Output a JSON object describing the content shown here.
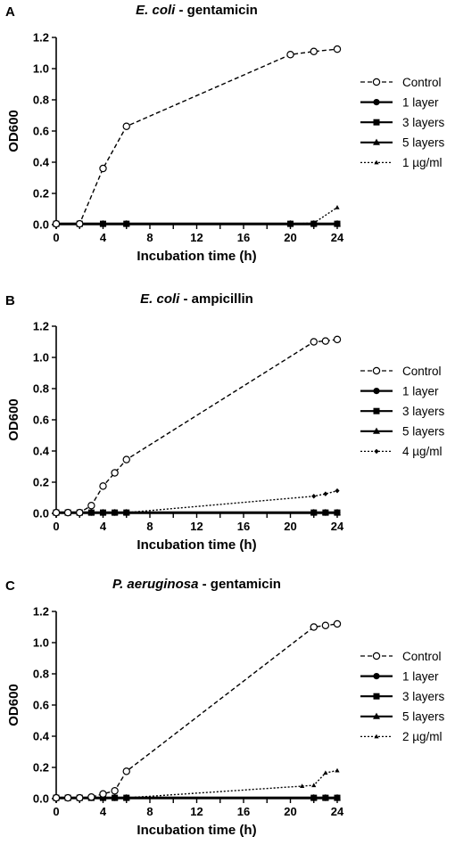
{
  "colors": {
    "ink": "#000000",
    "background": "#ffffff"
  },
  "chart_data": [
    {
      "type": "line",
      "panel_letter": "A",
      "title_italic": "E. coli",
      "title_rest": " - gentamicin",
      "xlabel": "Incubation time (h)",
      "ylabel": "OD600",
      "xlim": [
        0,
        24
      ],
      "ylim": [
        0,
        1.2
      ],
      "xticks": [
        "0",
        "4",
        "8",
        "12",
        "16",
        "20",
        "24"
      ],
      "yticks": [
        "0.0",
        "0.2",
        "0.4",
        "0.6",
        "0.8",
        "1.0",
        "1.2"
      ],
      "legend_position": "right",
      "series": [
        {
          "name": "Control",
          "marker": "open-circle",
          "line": "dashed",
          "x": [
            0,
            2,
            4,
            6,
            20,
            22,
            24
          ],
          "y": [
            0.005,
            0.005,
            0.36,
            0.63,
            1.09,
            1.11,
            1.125
          ]
        },
        {
          "name": "1 layer",
          "marker": "filled-circle",
          "line": "solid",
          "x": [
            0,
            2,
            4,
            6,
            20,
            22,
            24
          ],
          "y": [
            0.005,
            0.005,
            0.005,
            0.005,
            0.005,
            0.005,
            0.005
          ]
        },
        {
          "name": "3 layers",
          "marker": "filled-square",
          "line": "solid",
          "x": [
            0,
            2,
            4,
            6,
            20,
            22,
            24
          ],
          "y": [
            0.005,
            0.005,
            0.005,
            0.005,
            0.005,
            0.005,
            0.005
          ]
        },
        {
          "name": "5 layers",
          "marker": "filled-triangle",
          "line": "solid",
          "x": [
            0,
            2,
            4,
            6,
            20,
            22,
            24
          ],
          "y": [
            0.005,
            0.005,
            0.005,
            0.005,
            0.005,
            0.005,
            0.005
          ]
        },
        {
          "name": "1 µg/ml",
          "marker": "small-triangle",
          "line": "dotted",
          "x": [
            0,
            2,
            4,
            6,
            20,
            22,
            24
          ],
          "y": [
            0.005,
            0.005,
            0.005,
            0.005,
            0.005,
            0.01,
            0.11
          ]
        }
      ]
    },
    {
      "type": "line",
      "panel_letter": "B",
      "title_italic": "E. coli",
      "title_rest": " - ampicillin",
      "xlabel": "Incubation time (h)",
      "ylabel": "OD600",
      "xlim": [
        0,
        24
      ],
      "ylim": [
        0,
        1.2
      ],
      "xticks": [
        "0",
        "4",
        "8",
        "12",
        "16",
        "20",
        "24"
      ],
      "yticks": [
        "0.0",
        "0.2",
        "0.4",
        "0.6",
        "0.8",
        "1.0",
        "1.2"
      ],
      "legend_position": "right",
      "series": [
        {
          "name": "Control",
          "marker": "open-circle",
          "line": "dashed",
          "x": [
            0,
            1,
            2,
            3,
            4,
            5,
            6,
            22,
            23,
            24
          ],
          "y": [
            0.005,
            0.005,
            0.005,
            0.05,
            0.175,
            0.26,
            0.345,
            1.1,
            1.105,
            1.115
          ]
        },
        {
          "name": "1 layer",
          "marker": "filled-circle",
          "line": "solid",
          "x": [
            0,
            1,
            2,
            3,
            4,
            5,
            6,
            22,
            23,
            24
          ],
          "y": [
            0.005,
            0.005,
            0.005,
            0.005,
            0.005,
            0.005,
            0.005,
            0.005,
            0.005,
            0.005
          ]
        },
        {
          "name": "3 layers",
          "marker": "filled-square",
          "line": "solid",
          "x": [
            0,
            1,
            2,
            3,
            4,
            5,
            6,
            22,
            23,
            24
          ],
          "y": [
            0.005,
            0.005,
            0.005,
            0.005,
            0.005,
            0.005,
            0.005,
            0.005,
            0.005,
            0.005
          ]
        },
        {
          "name": "5 layers",
          "marker": "filled-triangle",
          "line": "solid",
          "x": [
            0,
            1,
            2,
            3,
            4,
            5,
            6,
            22,
            23,
            24
          ],
          "y": [
            0.005,
            0.005,
            0.005,
            0.005,
            0.005,
            0.005,
            0.005,
            0.005,
            0.005,
            0.005
          ]
        },
        {
          "name": "4 µg/ml",
          "marker": "small-diamond",
          "line": "dotted",
          "x": [
            0,
            1,
            2,
            3,
            4,
            5,
            6,
            22,
            23,
            24
          ],
          "y": [
            0.005,
            0.005,
            0.005,
            0.005,
            0.005,
            0.005,
            0.005,
            0.11,
            0.125,
            0.145
          ]
        }
      ]
    },
    {
      "type": "line",
      "panel_letter": "C",
      "title_italic": "P. aeruginosa",
      "title_rest": " - gentamicin",
      "xlabel": "Incubation time (h)",
      "ylabel": "OD600",
      "xlim": [
        0,
        24
      ],
      "ylim": [
        0,
        1.2
      ],
      "xticks": [
        "0",
        "4",
        "8",
        "12",
        "16",
        "20",
        "24"
      ],
      "yticks": [
        "0.0",
        "0.2",
        "0.4",
        "0.6",
        "0.8",
        "1.0",
        "1.2"
      ],
      "legend_position": "right",
      "series": [
        {
          "name": "Control",
          "marker": "open-circle",
          "line": "dashed",
          "x": [
            0,
            1,
            2,
            3,
            4,
            5,
            6,
            22,
            23,
            24
          ],
          "y": [
            0.005,
            0.005,
            0.005,
            0.01,
            0.03,
            0.05,
            0.175,
            1.1,
            1.11,
            1.12
          ]
        },
        {
          "name": "1 layer",
          "marker": "filled-circle",
          "line": "solid",
          "x": [
            0,
            1,
            2,
            3,
            4,
            5,
            6,
            22,
            23,
            24
          ],
          "y": [
            0.005,
            0.005,
            0.005,
            0.005,
            0.005,
            0.005,
            0.005,
            0.005,
            0.005,
            0.005
          ]
        },
        {
          "name": "3 layers",
          "marker": "filled-square",
          "line": "solid",
          "x": [
            0,
            1,
            2,
            3,
            4,
            5,
            6,
            22,
            23,
            24
          ],
          "y": [
            0.005,
            0.005,
            0.005,
            0.005,
            0.005,
            0.005,
            0.005,
            0.005,
            0.005,
            0.005
          ]
        },
        {
          "name": "5 layers",
          "marker": "filled-triangle",
          "line": "solid",
          "x": [
            0,
            1,
            2,
            3,
            4,
            5,
            6,
            22,
            23,
            24
          ],
          "y": [
            0.005,
            0.005,
            0.005,
            0.005,
            0.005,
            0.005,
            0.005,
            0.005,
            0.005,
            0.005
          ]
        },
        {
          "name": "2 µg/ml",
          "marker": "small-triangle",
          "line": "dotted",
          "x": [
            0,
            1,
            2,
            3,
            4,
            5,
            6,
            21,
            22,
            23,
            24
          ],
          "y": [
            0.005,
            0.005,
            0.005,
            0.005,
            0.005,
            0.005,
            0.005,
            0.08,
            0.085,
            0.165,
            0.18
          ]
        }
      ]
    }
  ]
}
